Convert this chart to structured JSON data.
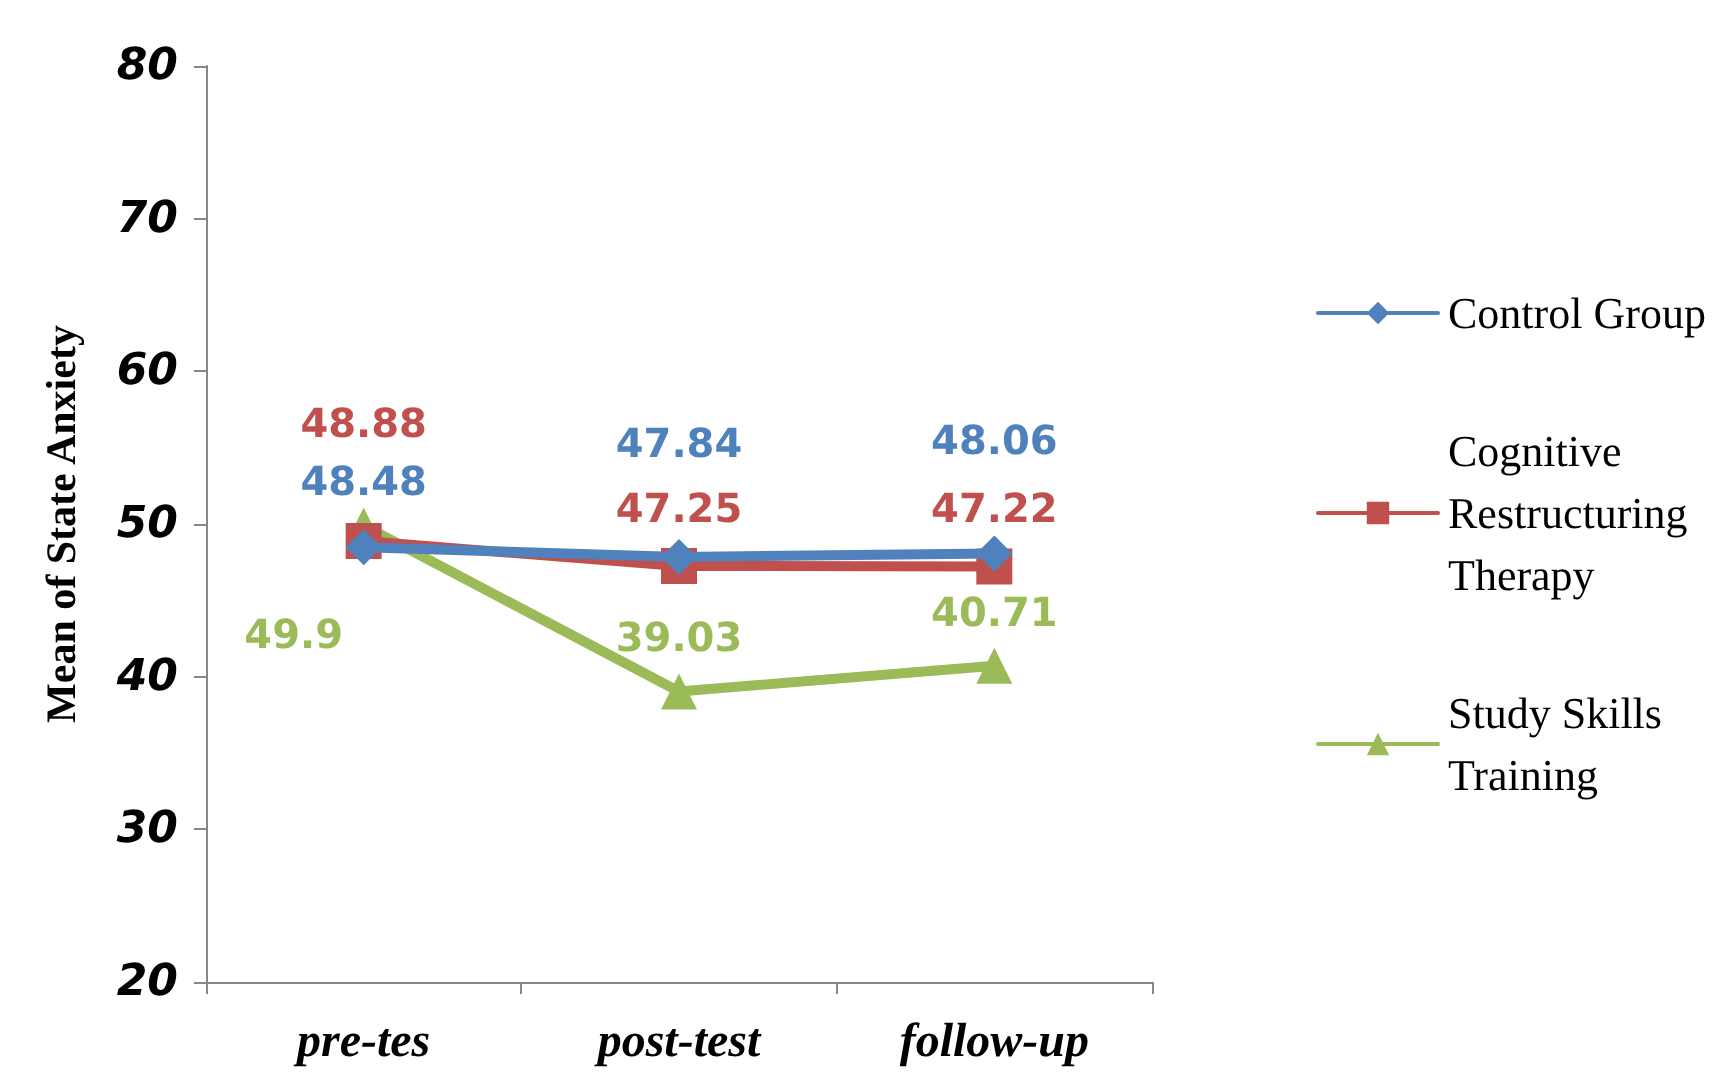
{
  "chart_data": {
    "type": "line",
    "ylabel": "Mean of State Anxiety",
    "categories": [
      "pre-tes",
      "post-test",
      "follow-up"
    ],
    "series": [
      {
        "name": "Control Group",
        "color": "#4f81bd",
        "marker": "diamond",
        "values": [
          48.48,
          47.84,
          48.06
        ]
      },
      {
        "name": "Cognitive Restructuring Therapy",
        "color": "#c0504d",
        "marker": "square",
        "values": [
          48.88,
          47.25,
          47.22
        ]
      },
      {
        "name": "Study Skills Training",
        "color": "#9bbb59",
        "marker": "triangle",
        "values": [
          49.9,
          39.03,
          40.71
        ]
      }
    ],
    "ylim": [
      20,
      80
    ],
    "yticks": [
      20,
      30,
      40,
      50,
      60,
      70,
      80
    ],
    "grid": false,
    "legend": "right",
    "data_labels": true,
    "line_style": "solid"
  }
}
